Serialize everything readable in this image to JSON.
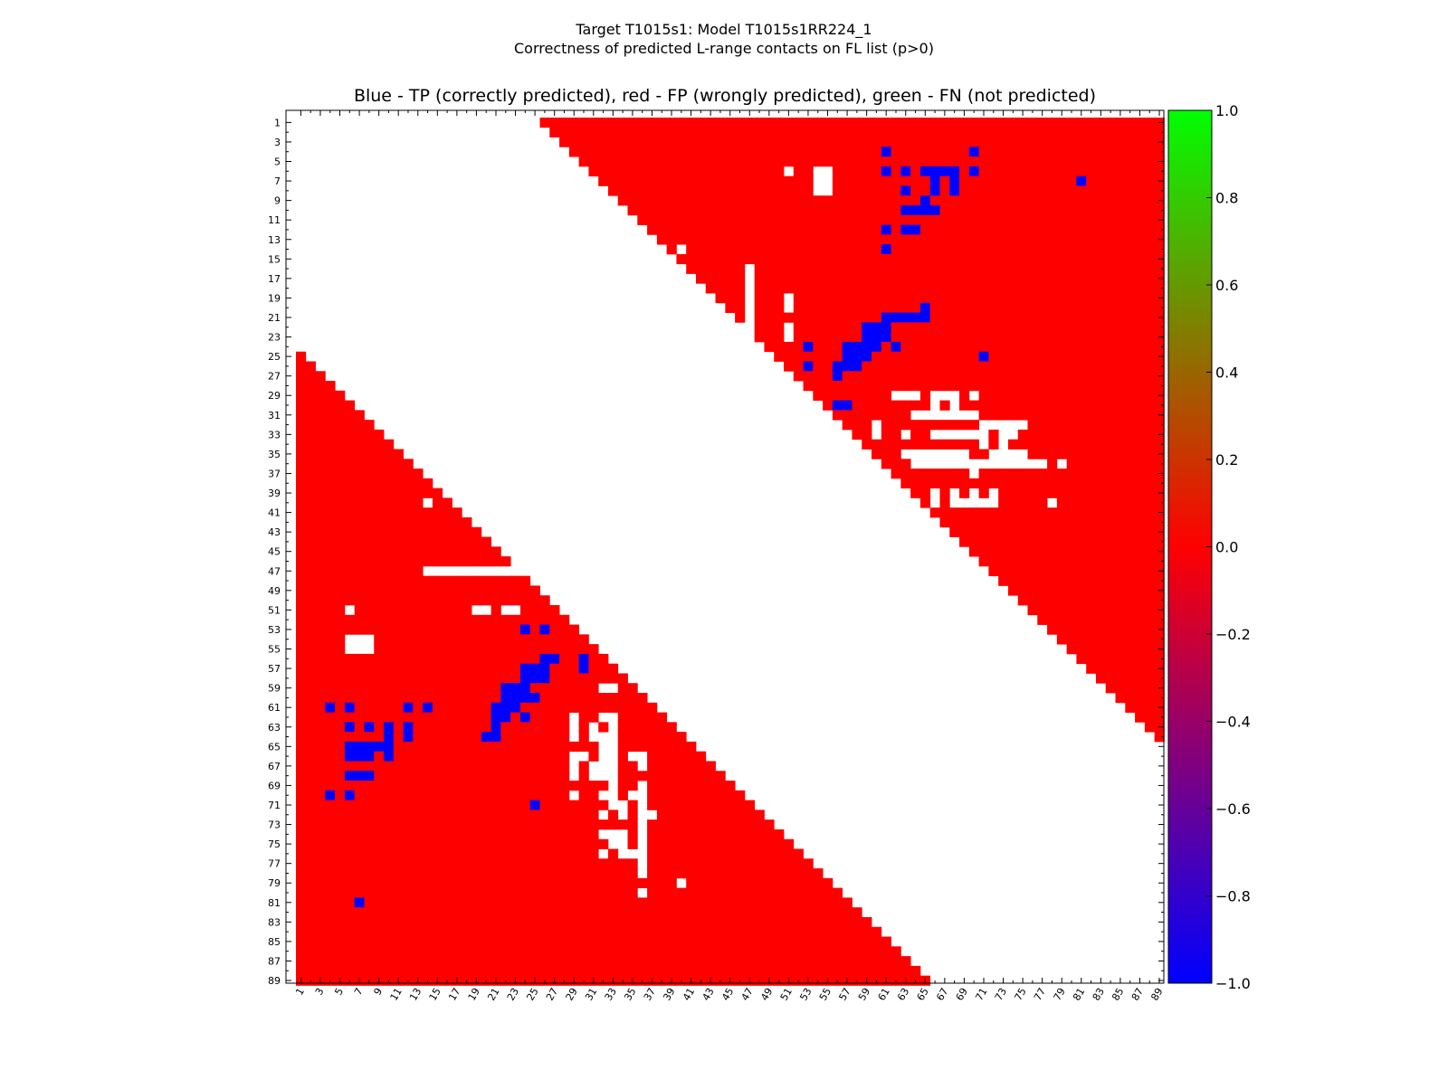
{
  "figure": {
    "title_line1": "Target T1015s1: Model T1015s1RR224_1",
    "title_line2": "Correctness of predicted L-range contacts on FL list (p>0)"
  },
  "chart_data": {
    "type": "heatmap",
    "title": "Blue - TP (correctly predicted), red - FP (wrongly predicted), green - FN (not predicted)",
    "xlabel": "",
    "ylabel": "",
    "residue_range": [
      1,
      89
    ],
    "tick_labels": [
      "1",
      "3",
      "5",
      "7",
      "9",
      "11",
      "13",
      "15",
      "17",
      "19",
      "21",
      "23",
      "25",
      "27",
      "29",
      "31",
      "33",
      "35",
      "37",
      "39",
      "41",
      "43",
      "45",
      "47",
      "49",
      "51",
      "53",
      "55",
      "57",
      "59",
      "61",
      "63",
      "65",
      "67",
      "69",
      "71",
      "73",
      "75",
      "77",
      "79",
      "81",
      "83",
      "85",
      "87",
      "89"
    ],
    "value_meaning": {
      "-1": "TP (correctly predicted)",
      "0": "FP (wrongly predicted)",
      "1": "FN (not predicted)"
    },
    "colors": {
      "tp": "#0000ff",
      "fp": "#ff0000",
      "fn": "#00ff00",
      "absent": "#ffffff"
    },
    "upper_region": {
      "first_row": 1,
      "last_row": 65,
      "min_separation": 25,
      "last_column": 89,
      "missing_row_cells": []
    },
    "lower_region": {
      "first_row": 25,
      "last_row": 89,
      "min_separation": 24,
      "first_column": 1
    },
    "tp_contacts": [
      [
        4,
        61
      ],
      [
        4,
        70
      ],
      [
        6,
        61
      ],
      [
        6,
        63
      ],
      [
        6,
        65
      ],
      [
        6,
        66
      ],
      [
        6,
        67
      ],
      [
        6,
        68
      ],
      [
        6,
        70
      ],
      [
        7,
        66
      ],
      [
        7,
        68
      ],
      [
        7,
        81
      ],
      [
        8,
        63
      ],
      [
        8,
        66
      ],
      [
        8,
        68
      ],
      [
        9,
        65
      ],
      [
        10,
        63
      ],
      [
        10,
        64
      ],
      [
        10,
        65
      ],
      [
        10,
        66
      ],
      [
        12,
        61
      ],
      [
        12,
        63
      ],
      [
        12,
        64
      ],
      [
        14,
        61
      ],
      [
        20,
        65
      ],
      [
        21,
        61
      ],
      [
        21,
        62
      ],
      [
        21,
        63
      ],
      [
        21,
        64
      ],
      [
        21,
        65
      ],
      [
        22,
        59
      ],
      [
        22,
        60
      ],
      [
        22,
        61
      ],
      [
        23,
        59
      ],
      [
        23,
        60
      ],
      [
        23,
        61
      ],
      [
        24,
        53
      ],
      [
        24,
        57
      ],
      [
        24,
        58
      ],
      [
        24,
        59
      ],
      [
        24,
        60
      ],
      [
        24,
        62
      ],
      [
        25,
        57
      ],
      [
        25,
        58
      ],
      [
        25,
        59
      ],
      [
        25,
        71
      ],
      [
        26,
        53
      ],
      [
        26,
        56
      ],
      [
        26,
        57
      ],
      [
        26,
        58
      ],
      [
        27,
        56
      ],
      [
        30,
        56
      ],
      [
        30,
        57
      ],
      [
        53,
        24
      ],
      [
        53,
        26
      ],
      [
        56,
        26
      ],
      [
        56,
        27
      ],
      [
        56,
        30
      ],
      [
        57,
        24
      ],
      [
        57,
        25
      ],
      [
        57,
        26
      ],
      [
        57,
        30
      ],
      [
        58,
        24
      ],
      [
        58,
        25
      ],
      [
        58,
        26
      ],
      [
        59,
        22
      ],
      [
        59,
        23
      ],
      [
        59,
        24
      ],
      [
        60,
        22
      ],
      [
        60,
        23
      ],
      [
        60,
        24
      ],
      [
        60,
        25
      ],
      [
        61,
        4
      ],
      [
        61,
        6
      ],
      [
        61,
        12
      ],
      [
        61,
        14
      ],
      [
        61,
        21
      ],
      [
        61,
        22
      ],
      [
        61,
        23
      ],
      [
        62,
        21
      ],
      [
        62,
        22
      ],
      [
        62,
        24
      ],
      [
        63,
        6
      ],
      [
        63,
        8
      ],
      [
        63,
        10
      ],
      [
        63,
        12
      ],
      [
        63,
        21
      ],
      [
        64,
        10
      ],
      [
        64,
        12
      ],
      [
        64,
        20
      ],
      [
        64,
        21
      ],
      [
        65,
        6
      ],
      [
        65,
        7
      ],
      [
        65,
        8
      ],
      [
        65,
        9
      ],
      [
        65,
        10
      ],
      [
        66,
        6
      ],
      [
        66,
        7
      ],
      [
        66,
        8
      ],
      [
        66,
        10
      ],
      [
        68,
        6
      ],
      [
        68,
        7
      ],
      [
        68,
        8
      ],
      [
        70,
        4
      ],
      [
        70,
        6
      ],
      [
        71,
        25
      ],
      [
        81,
        7
      ]
    ],
    "absent_cells": [
      [
        6,
        51
      ],
      [
        6,
        54
      ],
      [
        6,
        55
      ],
      [
        7,
        54
      ],
      [
        7,
        55
      ],
      [
        8,
        54
      ],
      [
        8,
        55
      ],
      [
        14,
        40
      ],
      [
        16,
        47
      ],
      [
        17,
        47
      ],
      [
        18,
        47
      ],
      [
        19,
        47
      ],
      [
        19,
        51
      ],
      [
        20,
        47
      ],
      [
        20,
        51
      ],
      [
        21,
        47
      ],
      [
        22,
        47
      ],
      [
        22,
        51
      ],
      [
        23,
        51
      ],
      [
        29,
        62
      ],
      [
        29,
        63
      ],
      [
        29,
        64
      ],
      [
        29,
        66
      ],
      [
        29,
        67
      ],
      [
        29,
        68
      ],
      [
        29,
        70
      ],
      [
        30,
        66
      ],
      [
        30,
        68
      ],
      [
        31,
        64
      ],
      [
        31,
        65
      ],
      [
        31,
        66
      ],
      [
        31,
        67
      ],
      [
        31,
        68
      ],
      [
        31,
        69
      ],
      [
        31,
        70
      ],
      [
        32,
        60
      ],
      [
        32,
        71
      ],
      [
        32,
        72
      ],
      [
        32,
        73
      ],
      [
        32,
        74
      ],
      [
        32,
        75
      ],
      [
        33,
        60
      ],
      [
        33,
        63
      ],
      [
        33,
        66
      ],
      [
        33,
        67
      ],
      [
        33,
        68
      ],
      [
        33,
        69
      ],
      [
        33,
        70
      ],
      [
        33,
        71
      ],
      [
        33,
        73
      ],
      [
        33,
        74
      ],
      [
        34,
        71
      ],
      [
        34,
        73
      ],
      [
        35,
        63
      ],
      [
        35,
        64
      ],
      [
        35,
        65
      ],
      [
        35,
        66
      ],
      [
        35,
        67
      ],
      [
        35,
        68
      ],
      [
        35,
        69
      ],
      [
        35,
        72
      ],
      [
        35,
        73
      ],
      [
        35,
        74
      ],
      [
        35,
        75
      ],
      [
        36,
        64
      ],
      [
        36,
        65
      ],
      [
        36,
        66
      ],
      [
        36,
        67
      ],
      [
        36,
        68
      ],
      [
        36,
        69
      ],
      [
        36,
        70
      ],
      [
        36,
        71
      ],
      [
        36,
        72
      ],
      [
        36,
        73
      ],
      [
        36,
        74
      ],
      [
        36,
        75
      ],
      [
        36,
        76
      ],
      [
        36,
        77
      ],
      [
        36,
        79
      ],
      [
        37,
        70
      ],
      [
        39,
        66
      ],
      [
        39,
        68
      ],
      [
        39,
        70
      ],
      [
        39,
        72
      ],
      [
        40,
        66
      ],
      [
        40,
        68
      ],
      [
        40,
        69
      ],
      [
        40,
        70
      ],
      [
        40,
        71
      ],
      [
        40,
        72
      ],
      [
        40,
        78
      ],
      [
        40,
        14
      ],
      [
        47,
        14
      ],
      [
        47,
        15
      ],
      [
        47,
        16
      ],
      [
        47,
        17
      ],
      [
        47,
        18
      ],
      [
        47,
        19
      ],
      [
        47,
        20
      ],
      [
        47,
        21
      ],
      [
        47,
        22
      ],
      [
        47,
        23
      ],
      [
        51,
        6
      ],
      [
        51,
        19
      ],
      [
        51,
        20
      ],
      [
        51,
        22
      ],
      [
        51,
        23
      ],
      [
        54,
        6
      ],
      [
        54,
        7
      ],
      [
        54,
        8
      ],
      [
        55,
        6
      ],
      [
        55,
        7
      ],
      [
        55,
        8
      ],
      [
        59,
        32
      ],
      [
        59,
        33
      ],
      [
        62,
        29
      ],
      [
        62,
        32
      ],
      [
        62,
        33
      ],
      [
        63,
        29
      ],
      [
        63,
        31
      ],
      [
        63,
        33
      ],
      [
        64,
        29
      ],
      [
        64,
        31
      ],
      [
        64,
        32
      ],
      [
        64,
        33
      ],
      [
        65,
        32
      ],
      [
        65,
        33
      ],
      [
        66,
        29
      ],
      [
        66,
        30
      ],
      [
        66,
        32
      ],
      [
        66,
        33
      ],
      [
        66,
        35
      ],
      [
        66,
        36
      ],
      [
        67,
        29
      ],
      [
        67,
        31
      ],
      [
        67,
        32
      ],
      [
        67,
        33
      ],
      [
        67,
        36
      ],
      [
        68,
        29
      ],
      [
        68,
        31
      ],
      [
        68,
        32
      ],
      [
        68,
        33
      ],
      [
        69,
        33
      ],
      [
        69,
        36
      ],
      [
        70,
        29
      ],
      [
        70,
        32
      ],
      [
        70,
        33
      ],
      [
        70,
        35
      ],
      [
        70,
        36
      ],
      [
        71,
        33
      ],
      [
        71,
        34
      ],
      [
        71,
        36
      ],
      [
        72,
        32
      ],
      [
        72,
        34
      ],
      [
        72,
        36
      ],
      [
        72,
        37
      ],
      [
        73,
        36
      ],
      [
        74,
        32
      ],
      [
        74,
        33
      ],
      [
        74,
        34
      ],
      [
        74,
        36
      ],
      [
        75,
        33
      ],
      [
        75,
        34
      ],
      [
        75,
        36
      ],
      [
        76,
        32
      ],
      [
        76,
        34
      ],
      [
        76,
        35
      ],
      [
        76,
        36
      ],
      [
        77,
        36
      ],
      [
        78,
        36
      ],
      [
        79,
        40
      ],
      [
        80,
        36
      ]
    ],
    "colorbar": {
      "range": [
        -1,
        1
      ],
      "ticks": [
        "1.0",
        "0.8",
        "0.6",
        "0.4",
        "0.2",
        "0.0",
        "−0.2",
        "−0.4",
        "−0.6",
        "−0.8",
        "−1.0"
      ],
      "tick_values": [
        1.0,
        0.8,
        0.6,
        0.4,
        0.2,
        0.0,
        -0.2,
        -0.4,
        -0.6,
        -0.8,
        -1.0
      ],
      "colormap_stops": [
        {
          "value": -1.0,
          "color": "#0000ff"
        },
        {
          "value": 0.0,
          "color": "#ff0000"
        },
        {
          "value": 1.0,
          "color": "#00ff00"
        }
      ]
    },
    "grid": false,
    "legend": "none"
  }
}
